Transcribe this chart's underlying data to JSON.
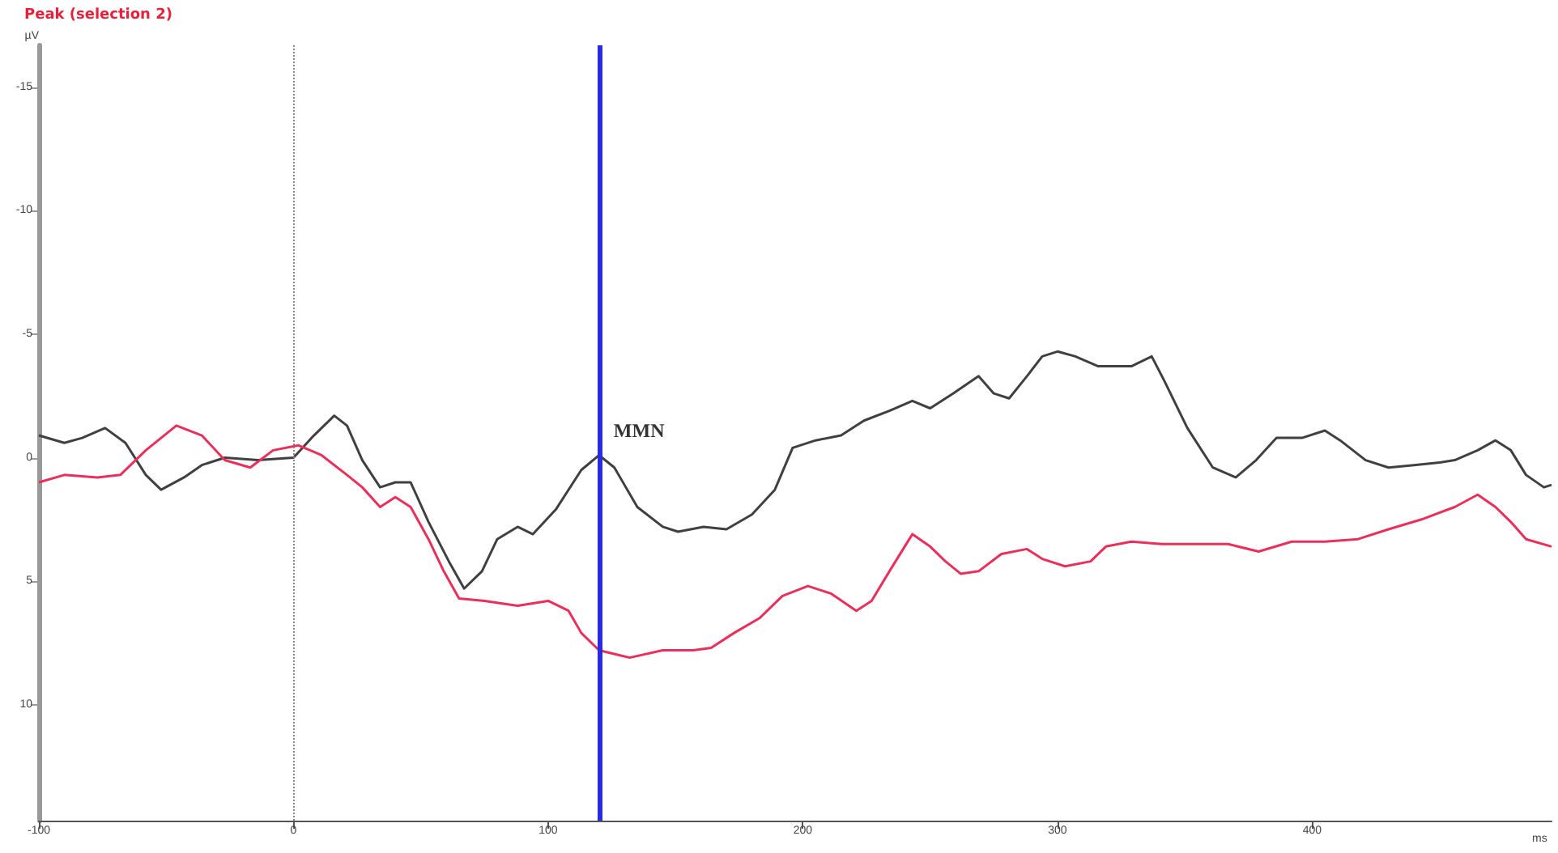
{
  "chart_data": {
    "type": "line",
    "title": "Peak (selection 2)",
    "xlabel": "ms",
    "ylabel": "µV",
    "xlim": [
      -100,
      494
    ],
    "xticks": [
      -100,
      0,
      100,
      200,
      300,
      400
    ],
    "ylim": [
      14.7,
      -16.7
    ],
    "yticks": [
      -15,
      -10,
      -5,
      0,
      5,
      10
    ],
    "grid": false,
    "marker": "none",
    "line_style": "solid",
    "series": [
      {
        "color": "#404040",
        "x": [
          -100,
          -90,
          -83,
          -74,
          -66,
          -58,
          -52,
          -43,
          -36,
          -27,
          -14,
          0,
          8,
          16,
          21,
          27,
          34,
          40,
          46,
          53,
          61,
          67,
          74,
          80,
          88,
          94,
          103,
          113,
          120,
          126,
          135,
          145,
          151,
          161,
          170,
          180,
          189,
          196,
          205,
          215,
          224,
          234,
          243,
          250,
          259,
          269,
          275,
          281,
          288,
          294,
          300,
          307,
          316,
          329,
          337,
          342,
          351,
          361,
          370,
          378,
          386,
          396,
          405,
          411,
          421,
          430,
          440,
          450,
          456,
          465,
          472,
          478,
          484,
          491,
          494
        ],
        "values": [
          -0.9,
          -0.6,
          -0.8,
          -1.2,
          -0.6,
          0.7,
          1.3,
          0.8,
          0.3,
          0,
          0.1,
          0,
          -0.9,
          -1.7,
          -1.3,
          0.1,
          1.2,
          1.0,
          1.0,
          2.6,
          4.2,
          5.3,
          4.6,
          3.3,
          2.8,
          3.1,
          2.1,
          0.5,
          -0.1,
          0.4,
          2.0,
          2.8,
          3.0,
          2.8,
          2.9,
          2.3,
          1.3,
          -0.4,
          -0.7,
          -0.9,
          -1.5,
          -1.9,
          -2.3,
          -2.0,
          -2.6,
          -3.3,
          -2.6,
          -2.4,
          -3.3,
          -4.1,
          -4.3,
          -4.1,
          -3.7,
          -3.7,
          -4.1,
          -3.1,
          -1.2,
          0.4,
          0.8,
          0.1,
          -0.8,
          -0.8,
          -1.1,
          -0.7,
          0.1,
          0.4,
          0.3,
          0.2,
          0.1,
          -0.3,
          -0.7,
          -0.3,
          0.7,
          1.2,
          1.1
        ]
      },
      {
        "color": "#e8305a",
        "x": [
          -100,
          -90,
          -77,
          -68,
          -58,
          -46,
          -36,
          -27,
          -17,
          -8,
          2,
          11,
          21,
          27,
          34,
          40,
          46,
          53,
          59,
          65,
          75,
          88,
          100,
          108,
          113,
          120,
          132,
          145,
          157,
          164,
          173,
          183,
          192,
          202,
          211,
          221,
          227,
          234,
          243,
          250,
          256,
          262,
          269,
          278,
          288,
          294,
          303,
          313,
          319,
          329,
          341,
          354,
          367,
          379,
          392,
          405,
          418,
          430,
          443,
          456,
          465,
          472,
          478,
          484,
          494
        ],
        "values": [
          1.0,
          0.7,
          0.8,
          0.7,
          -0.3,
          -1.3,
          -0.9,
          0.1,
          0.4,
          -0.3,
          -0.5,
          -0.1,
          0.7,
          1.2,
          2.0,
          1.6,
          2.0,
          3.3,
          4.6,
          5.7,
          5.8,
          6.0,
          5.8,
          6.2,
          7.1,
          7.8,
          8.1,
          7.8,
          7.8,
          7.7,
          7.1,
          6.5,
          5.6,
          5.2,
          5.5,
          6.2,
          5.8,
          4.6,
          3.1,
          3.6,
          4.2,
          4.7,
          4.6,
          3.9,
          3.7,
          4.1,
          4.4,
          4.2,
          3.6,
          3.4,
          3.5,
          3.5,
          3.5,
          3.8,
          3.4,
          3.4,
          3.3,
          2.9,
          2.5,
          2.0,
          1.5,
          2.0,
          2.6,
          3.3,
          3.6
        ]
      }
    ],
    "ref_lines": [
      {
        "axis": "x",
        "value": 0,
        "color": "#888888",
        "line_style": "dotted"
      },
      {
        "axis": "x",
        "value": 120,
        "color": "#2a2ae0",
        "line_style": "solid"
      }
    ],
    "annotations": [
      {
        "text": "MMN",
        "x": 120,
        "y": 0
      }
    ]
  }
}
